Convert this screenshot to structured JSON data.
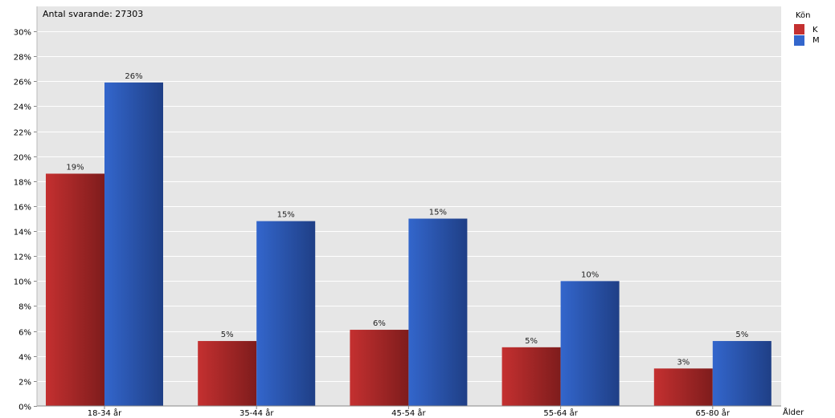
{
  "chart_data": {
    "type": "bar",
    "annotation": "Antal svarande: 27303",
    "xlabel": "Ålder",
    "ylabel": "",
    "categories": [
      "18-34 år",
      "35-44 år",
      "45-54 år",
      "55-64 år",
      "65-80 år"
    ],
    "series": [
      {
        "name": "K",
        "values": [
          18.6,
          5.2,
          6.1,
          4.7,
          3.0
        ],
        "labels": [
          "19%",
          "5%",
          "6%",
          "5%",
          "3%"
        ],
        "color": "#c43030",
        "color_dark": "#7e1c1c"
      },
      {
        "name": "M",
        "values": [
          25.9,
          14.8,
          15.0,
          10.0,
          5.2
        ],
        "labels": [
          "26%",
          "15%",
          "15%",
          "10%",
          "5%"
        ],
        "color": "#3366cc",
        "color_dark": "#1f3f86"
      }
    ],
    "ylim": [
      0,
      30
    ],
    "yticks": [
      "0%",
      "2%",
      "4%",
      "6%",
      "8%",
      "10%",
      "12%",
      "14%",
      "16%",
      "18%",
      "20%",
      "22%",
      "24%",
      "26%",
      "28%",
      "30%"
    ],
    "grid": true,
    "legend": {
      "title": "Kön",
      "position": "top-right"
    },
    "background": "#e6e6e6"
  }
}
